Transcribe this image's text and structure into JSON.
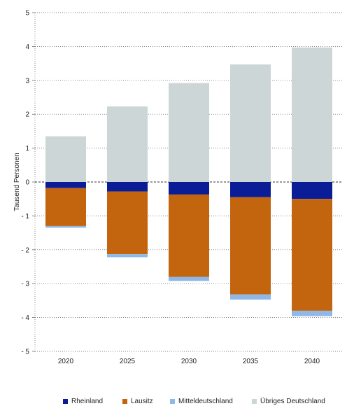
{
  "chart_data": {
    "type": "bar",
    "stacked": true,
    "categories": [
      "2020",
      "2025",
      "2030",
      "2035",
      "2040"
    ],
    "ylabel": "Tausend Personen",
    "xlabel": "",
    "ylim": [
      -5,
      5
    ],
    "yticks": [
      5,
      4,
      3,
      2,
      1,
      0,
      -1,
      -2,
      -3,
      -4,
      -5
    ],
    "ytick_labels": [
      "5",
      "4",
      "3",
      "2",
      "1",
      "0",
      "- 1",
      "- 2",
      "- 3",
      "- 4",
      "- 5"
    ],
    "grid": "horizontal dotted",
    "legend_position": "bottom",
    "series": [
      {
        "name": "Rheinland",
        "color": "#0b1d96",
        "values": [
          -0.18,
          -0.28,
          -0.37,
          -0.45,
          -0.5
        ]
      },
      {
        "name": "Lausitz",
        "color": "#c3650e",
        "values": [
          -1.12,
          -1.85,
          -2.43,
          -2.87,
          -3.3
        ]
      },
      {
        "name": "Mitteldeutschland",
        "color": "#8fb8e8",
        "values": [
          -0.05,
          -0.09,
          -0.12,
          -0.15,
          -0.16
        ]
      },
      {
        "name": "Übriges Deutschland",
        "color": "#cdd6d6",
        "values": [
          1.35,
          2.23,
          2.92,
          3.47,
          3.97
        ]
      }
    ]
  }
}
